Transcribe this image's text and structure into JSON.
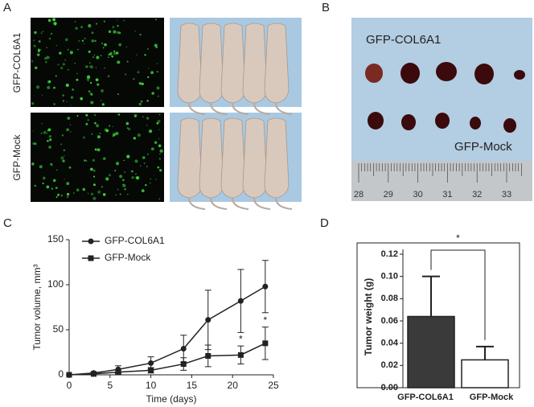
{
  "panels": {
    "A": {
      "label": "A",
      "rows": [
        "GFP-COL6A1",
        "GFP-Mock"
      ]
    },
    "B": {
      "label": "B",
      "top": "GFP-COL6A1",
      "bottom": "GFP-Mock",
      "ruler": [
        "28",
        "29",
        "30",
        "31",
        "32",
        "33"
      ]
    }
  },
  "chart_data": [
    {
      "type": "line",
      "panel": "C",
      "xlabel": "Time (days)",
      "ylabel": "Tumor volume, mm³",
      "x": [
        0,
        3,
        6,
        10,
        14,
        17,
        21,
        24
      ],
      "series": [
        {
          "name": "GFP-COL6A1",
          "color": "#222222",
          "marker": "circle",
          "values": [
            0,
            2,
            6,
            13,
            29,
            61,
            82,
            98
          ],
          "errors": [
            0,
            1,
            4,
            7,
            15,
            33,
            35,
            29
          ]
        },
        {
          "name": "GFP-Mock",
          "color": "#222222",
          "marker": "square",
          "values": [
            0,
            1,
            3,
            5,
            12,
            21,
            22,
            35
          ],
          "errors": [
            0,
            1,
            2,
            3,
            7,
            12,
            10,
            18
          ]
        }
      ],
      "annotations": [
        {
          "text": "*",
          "x": 21,
          "series": 1
        },
        {
          "text": "*",
          "x": 24,
          "series": 1
        }
      ],
      "xlim": [
        0,
        25
      ],
      "xticks": [
        0,
        5,
        10,
        15,
        20,
        25
      ],
      "ylim": [
        0,
        150
      ],
      "yticks": [
        0,
        50,
        100,
        150
      ],
      "legend": "top-left"
    },
    {
      "type": "bar",
      "panel": "D",
      "ylabel": "Tumor weight (g)",
      "categories": [
        "GFP-COL6A1",
        "GFP-Mock"
      ],
      "values": [
        0.064,
        0.025
      ],
      "errors": [
        0.036,
        0.012
      ],
      "colors": [
        "#3a3a3a",
        "#ffffff"
      ],
      "significance": "*",
      "ylim": [
        0,
        0.12
      ],
      "yticks": [
        {
          "value": 0,
          "label": "0.00"
        },
        {
          "value": 0.02,
          "label": "0.02"
        },
        {
          "value": 0.04,
          "label": "0.04"
        },
        {
          "value": 0.06,
          "label": "0.06"
        },
        {
          "value": 0.08,
          "label": "0.08"
        },
        {
          "value": 0.1,
          "label": "0.10"
        },
        {
          "value": 0.12,
          "label": "0.12"
        }
      ]
    }
  ]
}
